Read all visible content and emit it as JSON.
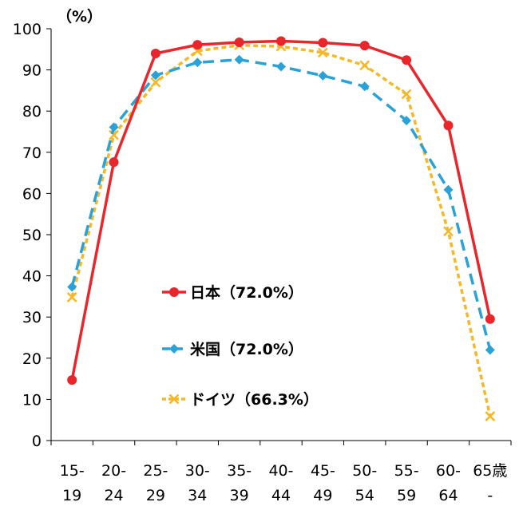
{
  "chart_data": {
    "type": "line",
    "unit_label": "（%）",
    "categories": [
      [
        "15-",
        "19"
      ],
      [
        "20-",
        "24"
      ],
      [
        "25-",
        "29"
      ],
      [
        "30-",
        "34"
      ],
      [
        "35-",
        "39"
      ],
      [
        "40-",
        "44"
      ],
      [
        "45-",
        "49"
      ],
      [
        "50-",
        "54"
      ],
      [
        "55-",
        "59"
      ],
      [
        "60-",
        "64"
      ],
      [
        "65歳",
        "-"
      ]
    ],
    "ylim": [
      0,
      100
    ],
    "yticks": [
      "0",
      "10",
      "20",
      "30",
      "40",
      "50",
      "60",
      "70",
      "80",
      "90",
      "100"
    ],
    "grid": false,
    "legend_position": "center-left",
    "series": [
      {
        "name": "日本（72.0%）",
        "color": "#e8262b",
        "line_style": "solid",
        "marker": "circle",
        "values": [
          14.7,
          67.6,
          94.0,
          96.1,
          96.7,
          97.0,
          96.6,
          95.9,
          92.4,
          76.5,
          29.5
        ]
      },
      {
        "name": "米国（72.0%）",
        "color": "#2aa2d8",
        "line_style": "dashed",
        "marker": "diamond",
        "values": [
          37.3,
          76.1,
          88.7,
          91.8,
          92.5,
          90.8,
          88.6,
          86.0,
          77.7,
          60.9,
          22.0
        ]
      },
      {
        "name": "ドイツ（66.3%）",
        "color": "#f5b827",
        "line_style": "dotted",
        "marker": "x",
        "values": [
          34.8,
          74.2,
          87.0,
          94.6,
          96.0,
          95.7,
          94.2,
          91.1,
          84.1,
          50.8,
          5.9
        ]
      }
    ]
  }
}
